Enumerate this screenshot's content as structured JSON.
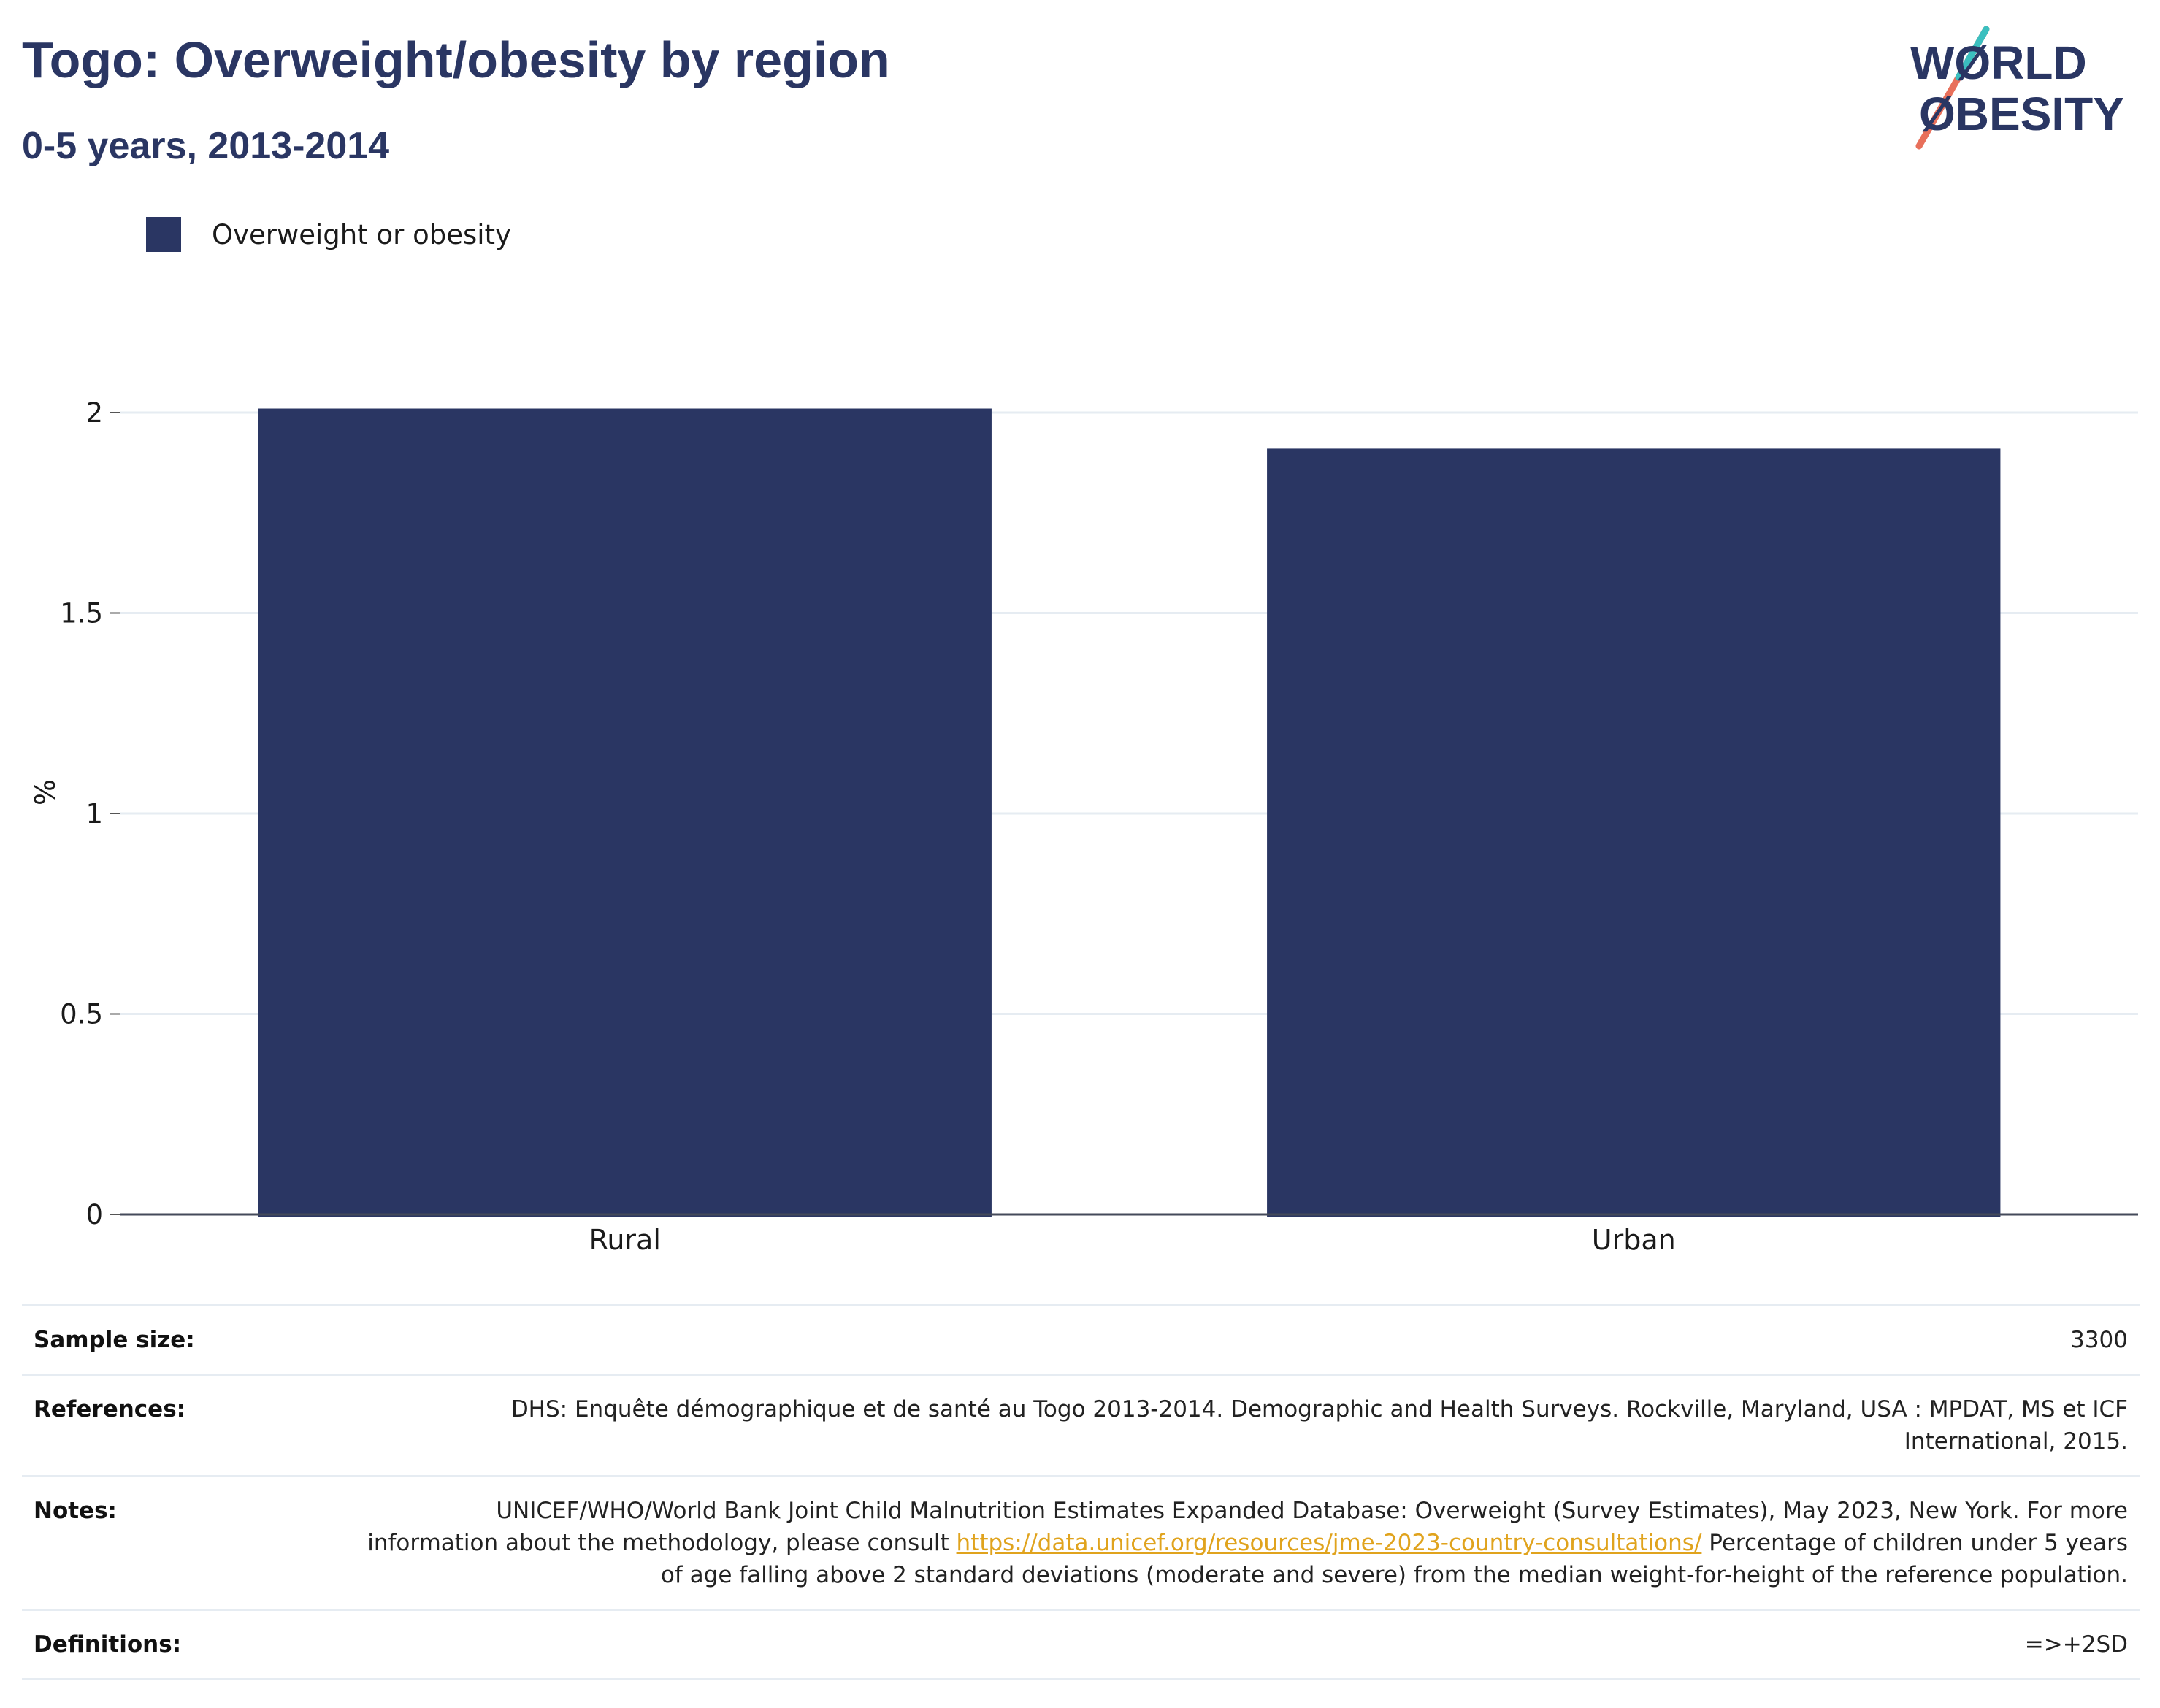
{
  "header": {
    "title": "Togo: Overweight/obesity by region",
    "subtitle": "0-5 years, 2013-2014"
  },
  "logo": {
    "line1": "WØRLD",
    "line2": "ØBESITY",
    "colors": {
      "text": "#2a3663",
      "slash_top": "#3bbfbf",
      "slash_bottom": "#e8705b"
    }
  },
  "legend": {
    "items": [
      {
        "label": "Overweight or obesity",
        "color": "#2a3663"
      }
    ]
  },
  "chart_data": {
    "type": "bar",
    "categories": [
      "Rural",
      "Urban"
    ],
    "series": [
      {
        "name": "Overweight or obesity",
        "values": [
          2.01,
          1.91
        ],
        "color": "#2a3663"
      }
    ],
    "ylabel": "%",
    "xlabel": "",
    "ylim": [
      0,
      2
    ],
    "yticks": [
      0,
      0.5,
      1,
      1.5,
      2
    ],
    "ytick_labels": [
      "0",
      "0.5",
      "1",
      "1.5",
      "2"
    ],
    "grid": true,
    "legend_position": "top-left"
  },
  "info": {
    "sample_size": {
      "label": "Sample size:",
      "value": "3300"
    },
    "references": {
      "label": "References:",
      "value": "DHS: Enquête démographique et de santé au Togo 2013-2014. Demographic and Health Surveys. Rockville, Maryland, USA : MPDAT, MS et ICF International, 2015."
    },
    "notes": {
      "label": "Notes:",
      "text_before": "UNICEF/WHO/World Bank Joint Child Malnutrition Estimates Expanded Database: Overweight (Survey Estimates), May 2023, New York. For more information about the methodology, please consult ",
      "link": "https://data.unicef.org/resources/jme-2023-country-consultations/",
      "text_after": " Percentage of children under 5 years of age falling above 2 standard deviations (moderate and severe) from the median weight-for-height of the reference population."
    },
    "definitions": {
      "label": "Definitions:",
      "value": "=>+2SD"
    }
  }
}
